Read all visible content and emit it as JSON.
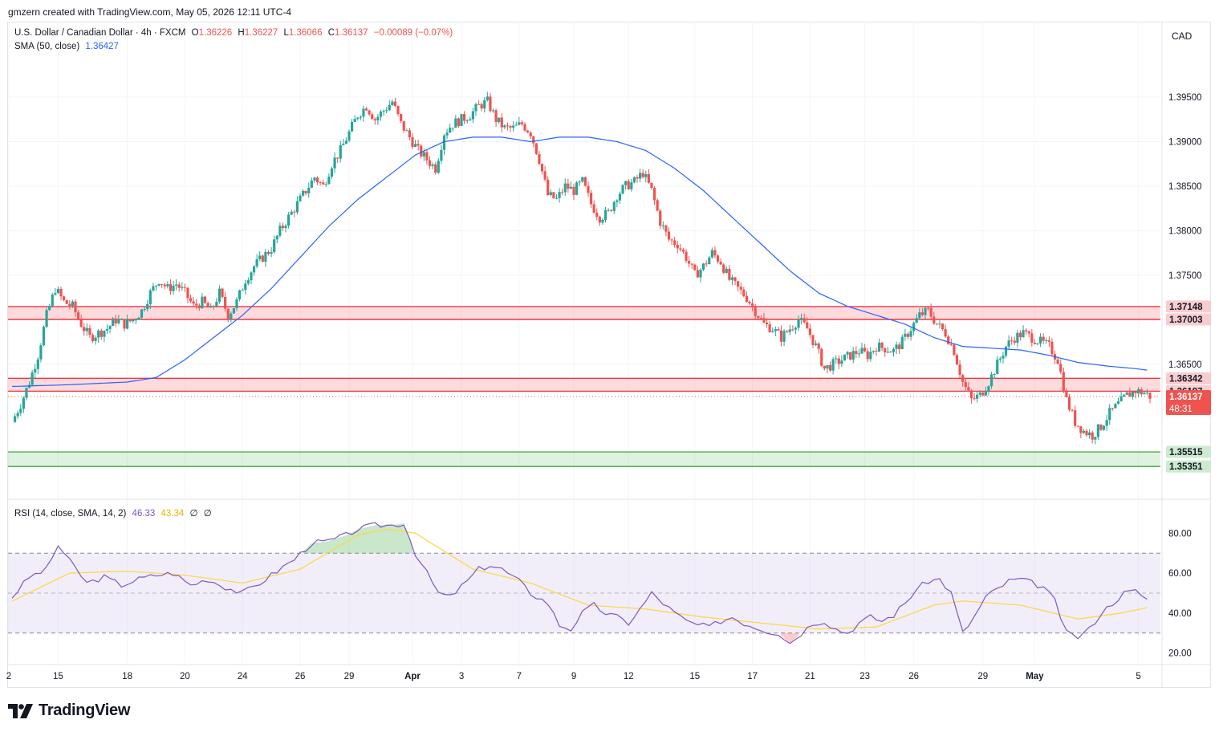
{
  "header": {
    "credit": "gmzern created with TradingView.com, May 05, 2026 12:11 UTC-4"
  },
  "legend": {
    "symbol": "U.S. Dollar / Canadian Dollar · 4h · FXCM",
    "o_label": "O",
    "o_value": "1.36226",
    "h_label": "H",
    "h_value": "1.36227",
    "l_label": "L",
    "l_value": "1.36066",
    "c_label": "C",
    "c_value": "1.36137",
    "change": "−0.00089 (−0.07%)",
    "sma_label": "SMA (50, close)",
    "sma_value": "1.36427",
    "rsi_label": "RSI (14, close, SMA, 14, 2)",
    "rsi_value": "46.33",
    "rsi_ma_value": "43.34",
    "rsi_extra1": "∅",
    "rsi_extra2": "∅"
  },
  "currency_button": "CAD",
  "branding": {
    "text": "TradingView",
    "icon": "tradingview-logo-icon"
  },
  "colors": {
    "up": "#26a69a",
    "down": "#ef5350",
    "sma": "#2962ff",
    "rsi": "#7e57c2",
    "rsi_ma": "#fbd84d",
    "resistance_zone": "#f23645",
    "support_zone": "#4caf50"
  },
  "chart_data": {
    "type": "candlestick",
    "title": "U.S. Dollar / Canadian Dollar · 4h · FXCM",
    "y_axis": {
      "ticks": [
        "1.39500",
        "1.39000",
        "1.38500",
        "1.38000",
        "1.37500",
        "1.36500"
      ],
      "range": [
        1.352,
        1.4005
      ]
    },
    "x_axis": {
      "ticks": [
        "2",
        "15",
        "18",
        "20",
        "24",
        "26",
        "29",
        "Apr",
        "3",
        "7",
        "9",
        "12",
        "15",
        "17",
        "21",
        "23",
        "26",
        "29",
        "May",
        "5"
      ]
    },
    "price_labels": {
      "last_price": "1.36137",
      "countdown": "48:31",
      "zone_labels": [
        "1.37148",
        "1.37003",
        "1.36342",
        "1.36197",
        "1.35515",
        "1.35351"
      ]
    },
    "zones": [
      {
        "kind": "resistance",
        "top": 1.37148,
        "bottom": 1.37003
      },
      {
        "kind": "resistance",
        "top": 1.36342,
        "bottom": 1.36197
      },
      {
        "kind": "support",
        "top": 1.35515,
        "bottom": 1.35351
      }
    ],
    "close_path": [
      [
        0,
        1.3585
      ],
      [
        3,
        1.3605
      ],
      [
        6,
        1.363
      ],
      [
        9,
        1.366
      ],
      [
        12,
        1.3705
      ],
      [
        15,
        1.3735
      ],
      [
        18,
        1.372
      ],
      [
        21,
        1.3715
      ],
      [
        24,
        1.3695
      ],
      [
        27,
        1.368
      ],
      [
        30,
        1.3685
      ],
      [
        33,
        1.369
      ],
      [
        36,
        1.37
      ],
      [
        39,
        1.3695
      ],
      [
        42,
        1.37
      ],
      [
        45,
        1.371
      ],
      [
        48,
        1.373
      ],
      [
        51,
        1.3745
      ],
      [
        54,
        1.3735
      ],
      [
        57,
        1.374
      ],
      [
        60,
        1.373
      ],
      [
        63,
        1.3715
      ],
      [
        66,
        1.372
      ],
      [
        69,
        1.371
      ],
      [
        72,
        1.373
      ],
      [
        75,
        1.3705
      ],
      [
        78,
        1.372
      ],
      [
        81,
        1.3745
      ],
      [
        84,
        1.376
      ],
      [
        87,
        1.377
      ],
      [
        90,
        1.378
      ],
      [
        93,
        1.38
      ],
      [
        96,
        1.3815
      ],
      [
        99,
        1.383
      ],
      [
        102,
        1.3845
      ],
      [
        105,
        1.386
      ],
      [
        108,
        1.385
      ],
      [
        111,
        1.3875
      ],
      [
        114,
        1.389
      ],
      [
        117,
        1.391
      ],
      [
        120,
        1.393
      ],
      [
        123,
        1.394
      ],
      [
        126,
        1.3925
      ],
      [
        129,
        1.3935
      ],
      [
        132,
        1.3945
      ],
      [
        135,
        1.392
      ],
      [
        138,
        1.3905
      ],
      [
        141,
        1.389
      ],
      [
        144,
        1.388
      ],
      [
        147,
        1.387
      ],
      [
        150,
        1.391
      ],
      [
        153,
        1.392
      ],
      [
        156,
        1.3925
      ],
      [
        159,
        1.393
      ],
      [
        162,
        1.394
      ],
      [
        165,
        1.3945
      ],
      [
        168,
        1.3925
      ],
      [
        171,
        1.3915
      ],
      [
        174,
        1.3915
      ],
      [
        177,
        1.392
      ],
      [
        180,
        1.391
      ],
      [
        183,
        1.388
      ],
      [
        186,
        1.384
      ],
      [
        189,
        1.3835
      ],
      [
        192,
        1.385
      ],
      [
        195,
        1.3845
      ],
      [
        198,
        1.3855
      ],
      [
        201,
        1.383
      ],
      [
        204,
        1.3815
      ],
      [
        207,
        1.382
      ],
      [
        210,
        1.384
      ],
      [
        213,
        1.385
      ],
      [
        216,
        1.3855
      ],
      [
        219,
        1.3865
      ],
      [
        222,
        1.3845
      ],
      [
        225,
        1.381
      ],
      [
        228,
        1.379
      ],
      [
        231,
        1.3785
      ],
      [
        234,
        1.377
      ],
      [
        237,
        1.375
      ],
      [
        240,
        1.376
      ],
      [
        243,
        1.3775
      ],
      [
        246,
        1.3765
      ],
      [
        249,
        1.3745
      ],
      [
        252,
        1.3735
      ],
      [
        255,
        1.3725
      ],
      [
        258,
        1.371
      ],
      [
        261,
        1.3695
      ],
      [
        264,
        1.369
      ],
      [
        267,
        1.368
      ],
      [
        270,
        1.369
      ],
      [
        273,
        1.37
      ],
      [
        276,
        1.369
      ],
      [
        279,
        1.367
      ],
      [
        282,
        1.3645
      ],
      [
        285,
        1.365
      ],
      [
        288,
        1.3655
      ],
      [
        291,
        1.366
      ],
      [
        294,
        1.3665
      ],
      [
        297,
        1.366
      ],
      [
        300,
        1.367
      ],
      [
        303,
        1.3668
      ],
      [
        306,
        1.3665
      ],
      [
        309,
        1.3675
      ],
      [
        312,
        1.369
      ],
      [
        315,
        1.3705
      ],
      [
        318,
        1.371
      ],
      [
        321,
        1.3695
      ],
      [
        324,
        1.3685
      ],
      [
        327,
        1.3665
      ],
      [
        330,
        1.363
      ],
      [
        333,
        1.361
      ],
      [
        336,
        1.3615
      ],
      [
        339,
        1.363
      ],
      [
        342,
        1.365
      ],
      [
        345,
        1.367
      ],
      [
        348,
        1.368
      ],
      [
        351,
        1.3685
      ],
      [
        354,
        1.368
      ],
      [
        357,
        1.3675
      ],
      [
        360,
        1.367
      ],
      [
        363,
        1.3655
      ],
      [
        366,
        1.361
      ],
      [
        369,
        1.3585
      ],
      [
        372,
        1.3575
      ],
      [
        375,
        1.357
      ],
      [
        378,
        1.358
      ],
      [
        381,
        1.3595
      ],
      [
        384,
        1.3605
      ],
      [
        387,
        1.3615
      ],
      [
        390,
        1.362
      ],
      [
        393,
        1.3618
      ],
      [
        395,
        1.3614
      ]
    ],
    "sma_path": [
      [
        0,
        1.3625
      ],
      [
        20,
        1.3627
      ],
      [
        40,
        1.363
      ],
      [
        50,
        1.3635
      ],
      [
        60,
        1.3655
      ],
      [
        70,
        1.368
      ],
      [
        80,
        1.3705
      ],
      [
        90,
        1.3735
      ],
      [
        100,
        1.377
      ],
      [
        110,
        1.3805
      ],
      [
        120,
        1.3835
      ],
      [
        130,
        1.386
      ],
      [
        140,
        1.3885
      ],
      [
        150,
        1.39
      ],
      [
        160,
        1.3905
      ],
      [
        170,
        1.3905
      ],
      [
        180,
        1.39
      ],
      [
        190,
        1.3905
      ],
      [
        200,
        1.3905
      ],
      [
        210,
        1.39
      ],
      [
        220,
        1.389
      ],
      [
        230,
        1.387
      ],
      [
        240,
        1.3845
      ],
      [
        250,
        1.3815
      ],
      [
        260,
        1.3785
      ],
      [
        270,
        1.3755
      ],
      [
        280,
        1.373
      ],
      [
        290,
        1.3715
      ],
      [
        300,
        1.3705
      ],
      [
        310,
        1.3695
      ],
      [
        320,
        1.368
      ],
      [
        330,
        1.367
      ],
      [
        340,
        1.3668
      ],
      [
        350,
        1.3666
      ],
      [
        360,
        1.366
      ],
      [
        370,
        1.3652
      ],
      [
        380,
        1.3648
      ],
      [
        390,
        1.3645
      ],
      [
        395,
        1.3643
      ]
    ],
    "rsi": {
      "levels": {
        "upper": 70,
        "middle": 50,
        "lower": 30
      },
      "y_ticks": [
        "80.00",
        "60.00",
        "40.00",
        "20.00"
      ],
      "range": [
        15,
        93
      ],
      "values": [
        [
          0,
          48
        ],
        [
          6,
          58
        ],
        [
          12,
          62
        ],
        [
          16,
          74
        ],
        [
          20,
          66
        ],
        [
          26,
          55
        ],
        [
          32,
          58
        ],
        [
          38,
          54
        ],
        [
          44,
          57
        ],
        [
          50,
          59
        ],
        [
          56,
          60
        ],
        [
          62,
          54
        ],
        [
          68,
          57
        ],
        [
          74,
          53
        ],
        [
          80,
          50
        ],
        [
          86,
          55
        ],
        [
          92,
          61
        ],
        [
          98,
          67
        ],
        [
          104,
          75
        ],
        [
          110,
          76
        ],
        [
          116,
          79
        ],
        [
          120,
          82
        ],
        [
          126,
          84
        ],
        [
          132,
          84
        ],
        [
          136,
          85
        ],
        [
          140,
          70
        ],
        [
          144,
          60
        ],
        [
          148,
          50
        ],
        [
          152,
          48
        ],
        [
          158,
          56
        ],
        [
          162,
          62
        ],
        [
          166,
          64
        ],
        [
          170,
          62
        ],
        [
          176,
          56
        ],
        [
          180,
          50
        ],
        [
          186,
          45
        ],
        [
          190,
          34
        ],
        [
          194,
          32
        ],
        [
          198,
          40
        ],
        [
          202,
          44
        ],
        [
          206,
          40
        ],
        [
          210,
          38
        ],
        [
          214,
          35
        ],
        [
          218,
          42
        ],
        [
          222,
          50
        ],
        [
          226,
          45
        ],
        [
          230,
          40
        ],
        [
          234,
          36
        ],
        [
          238,
          34
        ],
        [
          242,
          33
        ],
        [
          246,
          36
        ],
        [
          250,
          38
        ],
        [
          254,
          35
        ],
        [
          258,
          33
        ],
        [
          262,
          31
        ],
        [
          266,
          30
        ],
        [
          270,
          25
        ],
        [
          274,
          30
        ],
        [
          278,
          35
        ],
        [
          282,
          36
        ],
        [
          286,
          32
        ],
        [
          290,
          30
        ],
        [
          294,
          35
        ],
        [
          298,
          38
        ],
        [
          302,
          36
        ],
        [
          306,
          39
        ],
        [
          310,
          45
        ],
        [
          314,
          52
        ],
        [
          318,
          56
        ],
        [
          322,
          57
        ],
        [
          326,
          50
        ],
        [
          330,
          30
        ],
        [
          334,
          38
        ],
        [
          338,
          48
        ],
        [
          342,
          52
        ],
        [
          346,
          56
        ],
        [
          350,
          57
        ],
        [
          354,
          55
        ],
        [
          358,
          53
        ],
        [
          362,
          46
        ],
        [
          366,
          30
        ],
        [
          370,
          28
        ],
        [
          374,
          32
        ],
        [
          378,
          40
        ],
        [
          382,
          45
        ],
        [
          386,
          50
        ],
        [
          390,
          51
        ],
        [
          393,
          48
        ],
        [
          395,
          46
        ]
      ],
      "ma": [
        [
          0,
          46
        ],
        [
          20,
          60
        ],
        [
          40,
          61
        ],
        [
          60,
          59
        ],
        [
          80,
          55
        ],
        [
          100,
          62
        ],
        [
          120,
          79
        ],
        [
          130,
          82
        ],
        [
          140,
          80
        ],
        [
          160,
          62
        ],
        [
          180,
          55
        ],
        [
          200,
          44
        ],
        [
          220,
          42
        ],
        [
          240,
          38
        ],
        [
          260,
          35
        ],
        [
          280,
          32
        ],
        [
          300,
          33
        ],
        [
          320,
          44
        ],
        [
          330,
          46
        ],
        [
          350,
          44
        ],
        [
          370,
          37
        ],
        [
          385,
          40
        ],
        [
          395,
          43
        ]
      ]
    }
  }
}
